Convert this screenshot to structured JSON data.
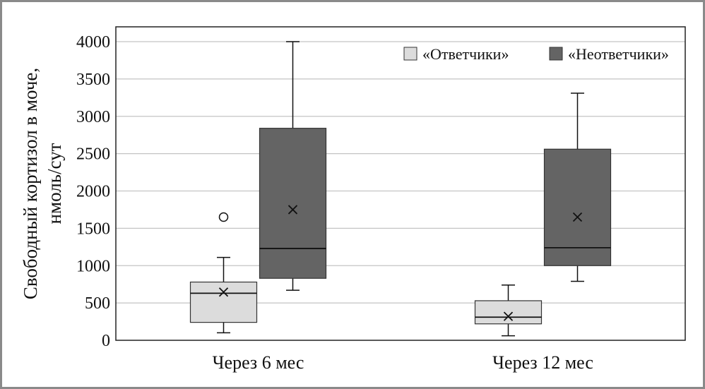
{
  "chart_data": {
    "type": "boxplot",
    "title": "",
    "ylabel_line1": "Свободный кортизол в моче,",
    "ylabel_line2": "нмоль/сут",
    "ylim": [
      0,
      4250
    ],
    "yticks": [
      0,
      500,
      1000,
      1500,
      2000,
      2500,
      3000,
      3500,
      4000
    ],
    "ytick_labels": [
      "0",
      "500",
      "1000",
      "1500",
      "2000",
      "2500",
      "3000",
      "3500",
      "4000"
    ],
    "categories": [
      "Через 6 мес",
      "Через 12 мес"
    ],
    "grid": true,
    "legend_position": "top-right",
    "series": [
      {
        "name": "«Ответчики»",
        "color": "#dcdcdc",
        "boxes": [
          {
            "whisker_low": 100,
            "q1": 240,
            "median": 630,
            "q3": 780,
            "whisker_high": 1110,
            "mean": 645,
            "outliers": [
              1650
            ]
          },
          {
            "whisker_low": 60,
            "q1": 220,
            "median": 310,
            "q3": 530,
            "whisker_high": 740,
            "mean": 320,
            "outliers": []
          }
        ]
      },
      {
        "name": "«Неответчики»",
        "color": "#646464",
        "boxes": [
          {
            "whisker_low": 670,
            "q1": 830,
            "median": 1230,
            "q3": 2840,
            "whisker_high": 4000,
            "mean": 1750,
            "outliers": []
          },
          {
            "whisker_low": 790,
            "q1": 1000,
            "median": 1240,
            "q3": 2560,
            "whisker_high": 3310,
            "mean": 1650,
            "outliers": []
          }
        ]
      }
    ]
  }
}
